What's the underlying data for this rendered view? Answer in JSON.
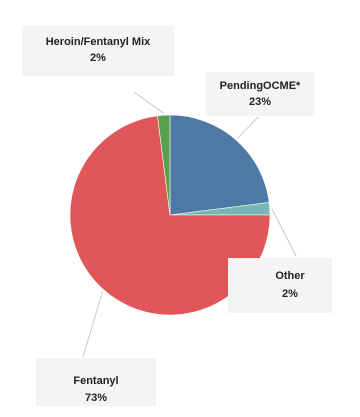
{
  "chart_data": {
    "type": "pie",
    "slices": [
      {
        "label": "PendingOCME*",
        "value": 23,
        "value_label": "23%",
        "color": "#4e79a7"
      },
      {
        "label": "Other",
        "value": 2,
        "value_label": "2%",
        "color": "#76b7b2"
      },
      {
        "label": "Fentanyl",
        "value": 73,
        "value_label": "73%",
        "color": "#e15759"
      },
      {
        "label": "Heroin/Fentanyl Mix",
        "value": 2,
        "value_label": "2%",
        "color": "#59a14f"
      }
    ],
    "legend": "none"
  }
}
